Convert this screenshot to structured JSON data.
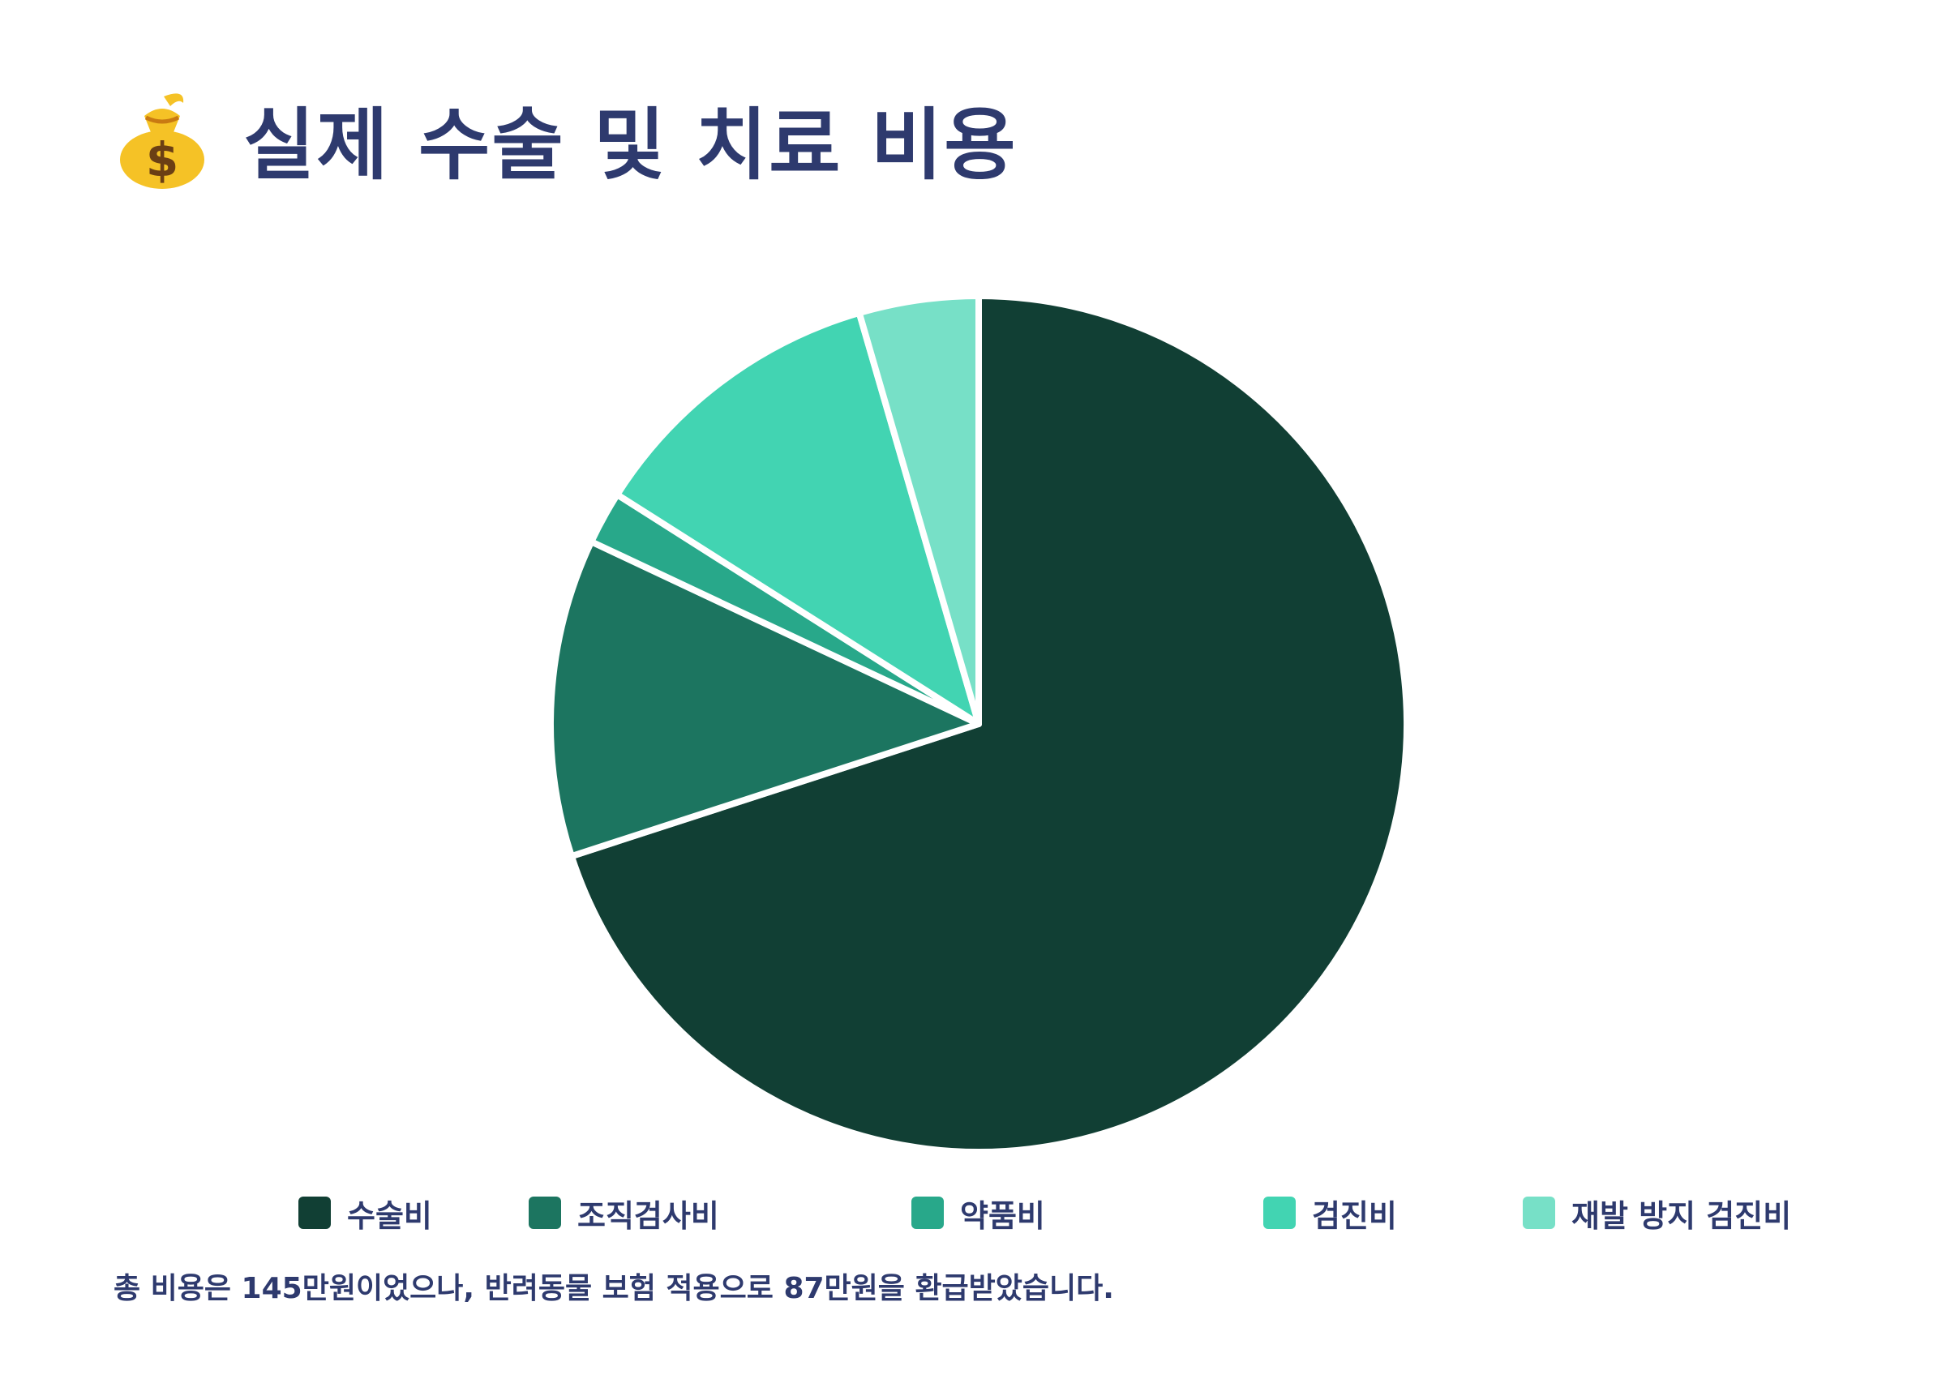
{
  "title": "실제 수술 및 치료 비용",
  "title_icon": "money-bag-icon",
  "chart_data": {
    "type": "pie",
    "title": "실제 수술 및 치료 비용",
    "categories": [
      "수술비",
      "조직검사비",
      "약품비",
      "검진비",
      "재발 방지 검진비"
    ],
    "values": [
      70,
      12,
      2,
      11.5,
      4.5
    ],
    "colors": [
      "#113f34",
      "#1c7560",
      "#28a88a",
      "#42d4b2",
      "#77e0c7"
    ],
    "start_angle_deg": 0,
    "direction": "clockwise",
    "legend_position": "bottom"
  },
  "note": {
    "parts": [
      {
        "text": "총 비용은 ",
        "bold": false
      },
      {
        "text": "145",
        "bold": true
      },
      {
        "text": "만원이었으나, 반려동물 보험 적용으로 ",
        "bold": false
      },
      {
        "text": "87",
        "bold": true
      },
      {
        "text": "만원을 환급받았습니다.",
        "bold": false
      }
    ]
  }
}
